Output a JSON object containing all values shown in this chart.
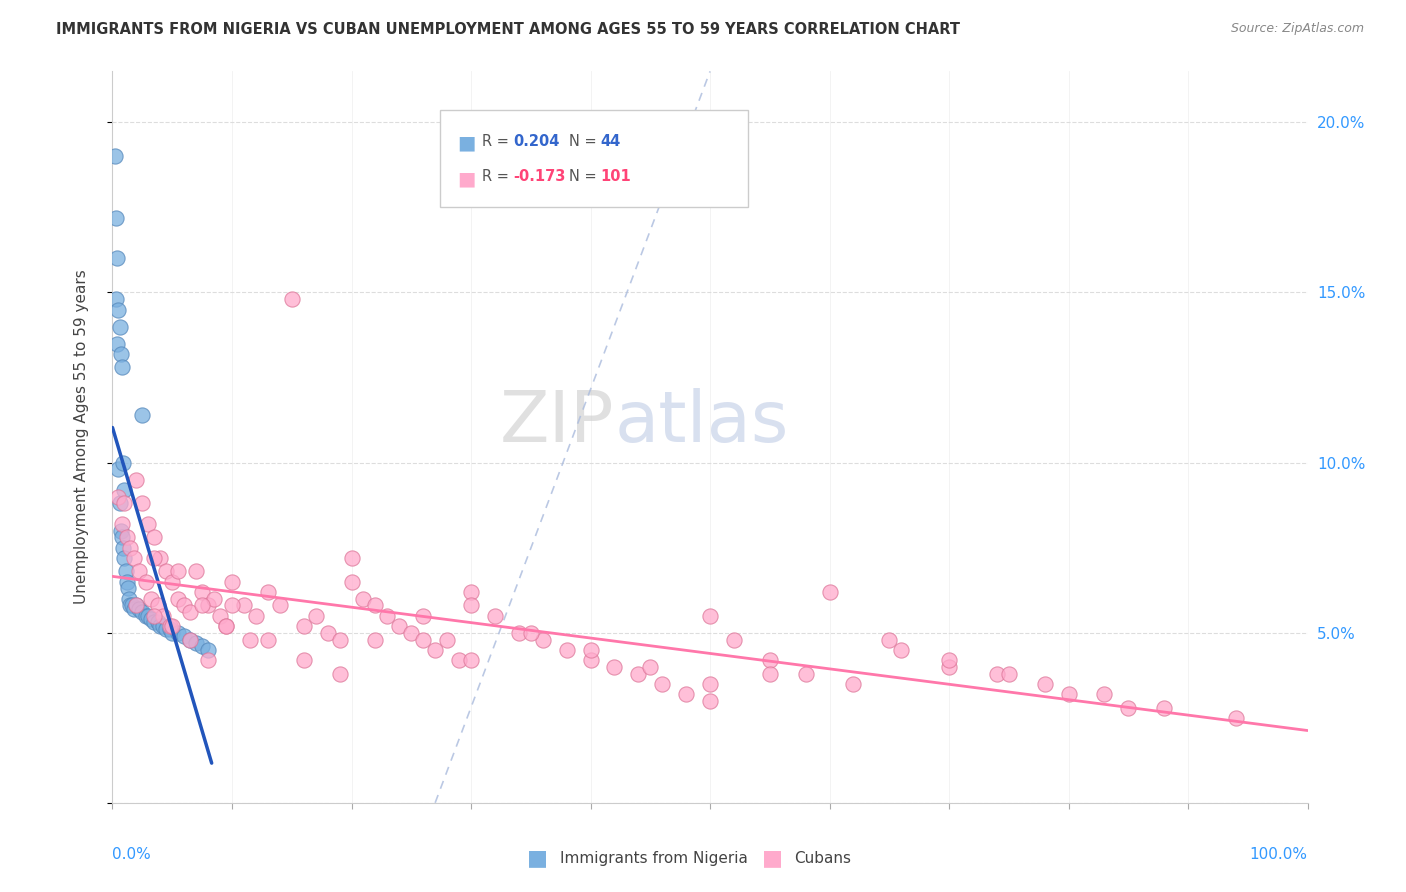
{
  "title": "IMMIGRANTS FROM NIGERIA VS CUBAN UNEMPLOYMENT AMONG AGES 55 TO 59 YEARS CORRELATION CHART",
  "source": "Source: ZipAtlas.com",
  "ylabel": "Unemployment Among Ages 55 to 59 years",
  "nigeria_color": "#7ab0e0",
  "nigeria_edge_color": "#5588bb",
  "cuba_color": "#ffaacc",
  "cuba_edge_color": "#dd7799",
  "nigeria_line_color": "#2255bb",
  "cuba_line_color": "#ff77aa",
  "diag_line_color": "#aabbdd",
  "xlim": [
    0.0,
    1.0
  ],
  "ylim": [
    0.0,
    0.215
  ],
  "right_yticks": [
    0.05,
    0.1,
    0.15,
    0.2
  ],
  "right_yticklabels": [
    "5.0%",
    "10.0%",
    "15.0%",
    "20.0%"
  ],
  "nigeria_x": [
    0.002,
    0.003,
    0.003,
    0.004,
    0.004,
    0.005,
    0.005,
    0.006,
    0.006,
    0.007,
    0.007,
    0.008,
    0.008,
    0.009,
    0.009,
    0.01,
    0.01,
    0.011,
    0.012,
    0.013,
    0.014,
    0.015,
    0.016,
    0.018,
    0.02,
    0.022,
    0.025,
    0.028,
    0.03,
    0.032,
    0.035,
    0.038,
    0.04,
    0.042,
    0.045,
    0.048,
    0.05,
    0.055,
    0.06,
    0.065,
    0.07,
    0.075,
    0.08,
    0.025
  ],
  "nigeria_y": [
    0.19,
    0.172,
    0.148,
    0.16,
    0.135,
    0.145,
    0.098,
    0.14,
    0.088,
    0.132,
    0.08,
    0.128,
    0.078,
    0.1,
    0.075,
    0.092,
    0.072,
    0.068,
    0.065,
    0.063,
    0.06,
    0.058,
    0.058,
    0.057,
    0.058,
    0.057,
    0.056,
    0.055,
    0.055,
    0.054,
    0.053,
    0.053,
    0.052,
    0.052,
    0.051,
    0.051,
    0.05,
    0.05,
    0.049,
    0.048,
    0.047,
    0.046,
    0.045,
    0.114
  ],
  "cuba_x": [
    0.005,
    0.008,
    0.01,
    0.012,
    0.015,
    0.018,
    0.02,
    0.022,
    0.025,
    0.028,
    0.03,
    0.032,
    0.035,
    0.038,
    0.04,
    0.042,
    0.045,
    0.048,
    0.05,
    0.055,
    0.06,
    0.065,
    0.07,
    0.075,
    0.08,
    0.085,
    0.09,
    0.095,
    0.1,
    0.11,
    0.12,
    0.13,
    0.14,
    0.15,
    0.16,
    0.17,
    0.18,
    0.19,
    0.2,
    0.21,
    0.22,
    0.23,
    0.24,
    0.25,
    0.26,
    0.27,
    0.28,
    0.29,
    0.3,
    0.32,
    0.34,
    0.36,
    0.38,
    0.4,
    0.42,
    0.44,
    0.46,
    0.48,
    0.5,
    0.52,
    0.55,
    0.58,
    0.62,
    0.66,
    0.7,
    0.74,
    0.78,
    0.83,
    0.88,
    0.94,
    0.02,
    0.035,
    0.05,
    0.065,
    0.08,
    0.1,
    0.13,
    0.16,
    0.19,
    0.22,
    0.26,
    0.3,
    0.35,
    0.4,
    0.45,
    0.5,
    0.55,
    0.6,
    0.65,
    0.7,
    0.75,
    0.8,
    0.85,
    0.035,
    0.055,
    0.075,
    0.095,
    0.115,
    0.2,
    0.3,
    0.5
  ],
  "cuba_y": [
    0.09,
    0.082,
    0.088,
    0.078,
    0.075,
    0.072,
    0.095,
    0.068,
    0.088,
    0.065,
    0.082,
    0.06,
    0.078,
    0.058,
    0.072,
    0.055,
    0.068,
    0.052,
    0.065,
    0.06,
    0.058,
    0.056,
    0.068,
    0.062,
    0.058,
    0.06,
    0.055,
    0.052,
    0.065,
    0.058,
    0.055,
    0.062,
    0.058,
    0.148,
    0.052,
    0.055,
    0.05,
    0.048,
    0.065,
    0.06,
    0.058,
    0.055,
    0.052,
    0.05,
    0.048,
    0.045,
    0.048,
    0.042,
    0.062,
    0.055,
    0.05,
    0.048,
    0.045,
    0.042,
    0.04,
    0.038,
    0.035,
    0.032,
    0.055,
    0.048,
    0.042,
    0.038,
    0.035,
    0.045,
    0.04,
    0.038,
    0.035,
    0.032,
    0.028,
    0.025,
    0.058,
    0.055,
    0.052,
    0.048,
    0.042,
    0.058,
    0.048,
    0.042,
    0.038,
    0.048,
    0.055,
    0.058,
    0.05,
    0.045,
    0.04,
    0.035,
    0.038,
    0.062,
    0.048,
    0.042,
    0.038,
    0.032,
    0.028,
    0.072,
    0.068,
    0.058,
    0.052,
    0.048,
    0.072,
    0.042,
    0.03
  ]
}
